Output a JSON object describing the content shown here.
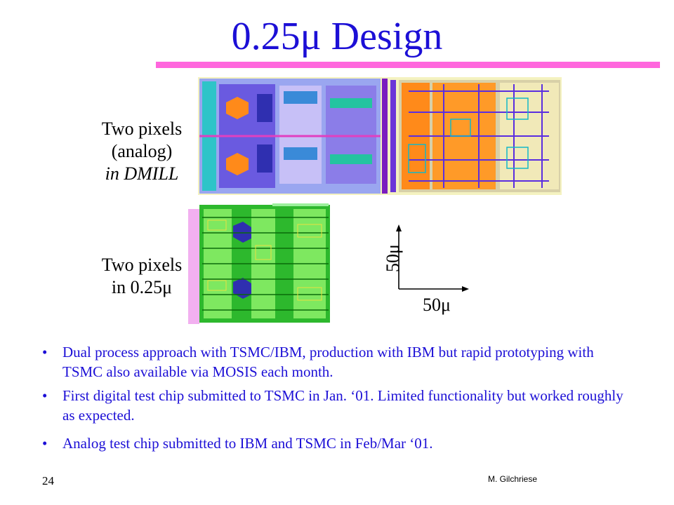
{
  "title": "0.25μ Design",
  "colors": {
    "title": "#1c0fd6",
    "title_bar": "#ff66dd",
    "bullet_text": "#1c0fd6"
  },
  "figure_labels": {
    "dmill": {
      "line1": "Two pixels",
      "line2": "(analog)",
      "line3": "in DMILL"
    },
    "quarter_micron": {
      "line1": "Two pixels",
      "line2": "in 0.25μ"
    }
  },
  "scale": {
    "vertical": "50μ",
    "horizontal": "50μ"
  },
  "images": [
    {
      "name": "dmill-layout",
      "description_icon": "chip-layout-icon"
    },
    {
      "name": "quarter-micron-layout",
      "description_icon": "chip-layout-icon"
    }
  ],
  "bullets": [
    "Dual process approach with TSMC/IBM, production with IBM but rapid prototyping with TSMC also available via MOSIS each month.",
    "First digital test chip submitted to TSMC in Jan. ‘01. Limited functionality but worked roughly as expected.",
    "Analog test chip submitted to IBM and TSMC in Feb/Mar ‘01."
  ],
  "bullet_glyph": "•",
  "footer": {
    "page_number": "24",
    "author": "M. Gilchriese"
  }
}
